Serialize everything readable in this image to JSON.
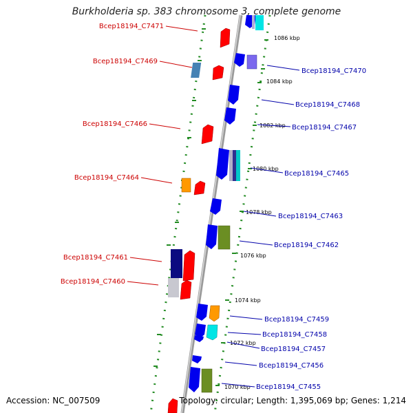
{
  "title": "Burkholderia sp. 383 chromosome 3, complete genome",
  "footer": {
    "accession": "Accession: NC_007509",
    "summary": "Topology: circular; Length: 1,395,069 bp; Genes: 1,214"
  },
  "colors": {
    "red_gene": "#ff0000",
    "blue_gene": "#0000ee",
    "left_label": "#cc0000",
    "right_label": "#0000aa",
    "dotted_track": "#228b22",
    "backbone": "#999999"
  },
  "scale_marks": [
    "1086 kbp",
    "1084 kbp",
    "1082 kbp",
    "1080 kbp",
    "1078 kbp",
    "1076 kbp",
    "1074 kbp",
    "1072 kbp",
    "1070 kbp"
  ],
  "left_labels": [
    "Bcep18194_C7471",
    "Bcep18194_C7469",
    "Bcep18194_C7466",
    "Bcep18194_C7464",
    "Bcep18194_C7461",
    "Bcep18194_C7460"
  ],
  "right_labels": [
    "Bcep18194_C7470",
    "Bcep18194_C7468",
    "Bcep18194_C7467",
    "Bcep18194_C7465",
    "Bcep18194_C7463",
    "Bcep18194_C7462",
    "Bcep18194_C7459",
    "Bcep18194_C7458",
    "Bcep18194_C7457",
    "Bcep18194_C7456",
    "Bcep18194_C7455"
  ]
}
